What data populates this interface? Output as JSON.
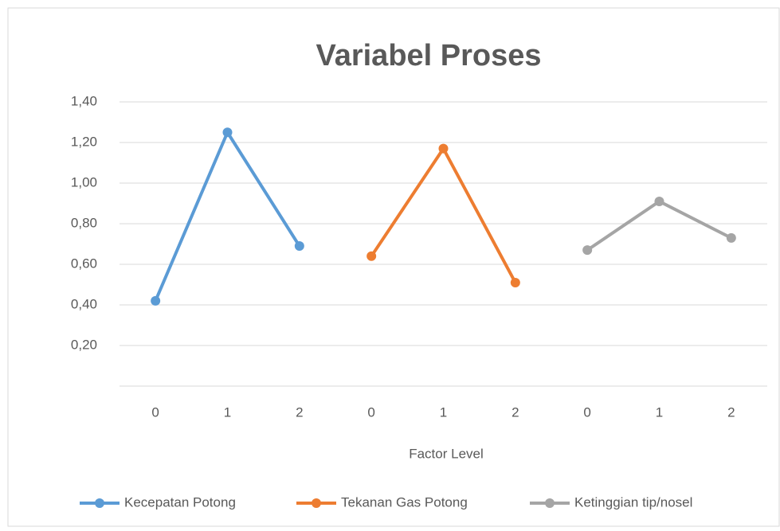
{
  "chart_data": {
    "type": "line",
    "title": "Variabel Proses",
    "x_label": "Factor Level",
    "categories": [
      "0",
      "1",
      "2",
      "0",
      "1",
      "2",
      "0",
      "1",
      "2"
    ],
    "series": [
      {
        "name": "Kecepatan Potong",
        "color": "#5b9bd5",
        "values": [
          0.42,
          1.25,
          0.69,
          null,
          null,
          null,
          null,
          null,
          null
        ]
      },
      {
        "name": "Tekanan Gas Potong",
        "color": "#ed7d31",
        "values": [
          null,
          null,
          null,
          0.64,
          1.17,
          0.51,
          null,
          null,
          null
        ]
      },
      {
        "name": "Ketinggian tip/nosel",
        "color": "#a5a5a5",
        "values": [
          null,
          null,
          null,
          null,
          null,
          null,
          0.67,
          0.91,
          0.73
        ]
      }
    ],
    "ylim": [
      0,
      1.4
    ],
    "yticks": [
      {
        "value": 0.2,
        "label": "0,20"
      },
      {
        "value": 0.4,
        "label": "0,40"
      },
      {
        "value": 0.6,
        "label": "0,60"
      },
      {
        "value": 0.8,
        "label": "0,80"
      },
      {
        "value": 1.0,
        "label": "1,00"
      },
      {
        "value": 1.2,
        "label": "1,20"
      },
      {
        "value": 1.4,
        "label": "1,40"
      }
    ],
    "grid": true,
    "legend": "bottom"
  }
}
